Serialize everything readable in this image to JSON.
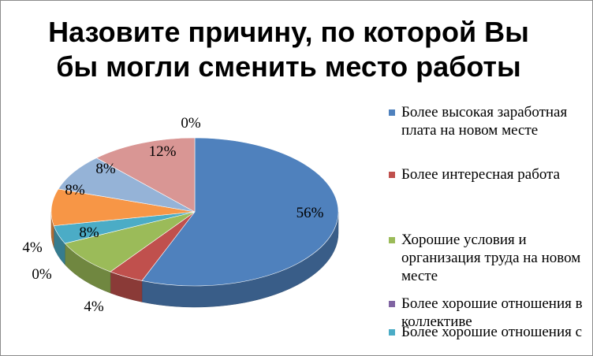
{
  "chart_data": {
    "type": "pie",
    "title": "Назовите причину, по которой Вы бы могли сменить место работы",
    "title_lines": [
      "Назовите причину, по которой Вы",
      "бы могли сменить место работы"
    ],
    "legend_position": "right",
    "slices": [
      {
        "label": "Более высокая заработная плата на новом месте",
        "value": 56,
        "value_label": "56%",
        "color": "#4f81bd"
      },
      {
        "label": "Более интересная работа",
        "value": 4,
        "value_label": "4%",
        "color": "#c0504d"
      },
      {
        "label": "Хорошие условия и организация труда на новом месте",
        "value": 8,
        "value_label": "8%",
        "color": "#9bbb59"
      },
      {
        "label": "Более хорошие отношения в коллективе",
        "value": 0,
        "value_label": "0%",
        "color": "#8064a2"
      },
      {
        "label": "Более хорошие отношения с",
        "value": 4,
        "value_label": "4%",
        "color": "#4bacc6"
      },
      {
        "label": "",
        "value": 8,
        "value_label": "8%",
        "color": "#f79646"
      },
      {
        "label": "",
        "value": 8,
        "value_label": "8%",
        "color": "#95b3d7"
      },
      {
        "label": "",
        "value": 12,
        "value_label": "12%",
        "color": "#d99694"
      },
      {
        "label": "",
        "value": 0,
        "value_label": "0%",
        "color": "#b7dee8"
      }
    ]
  }
}
